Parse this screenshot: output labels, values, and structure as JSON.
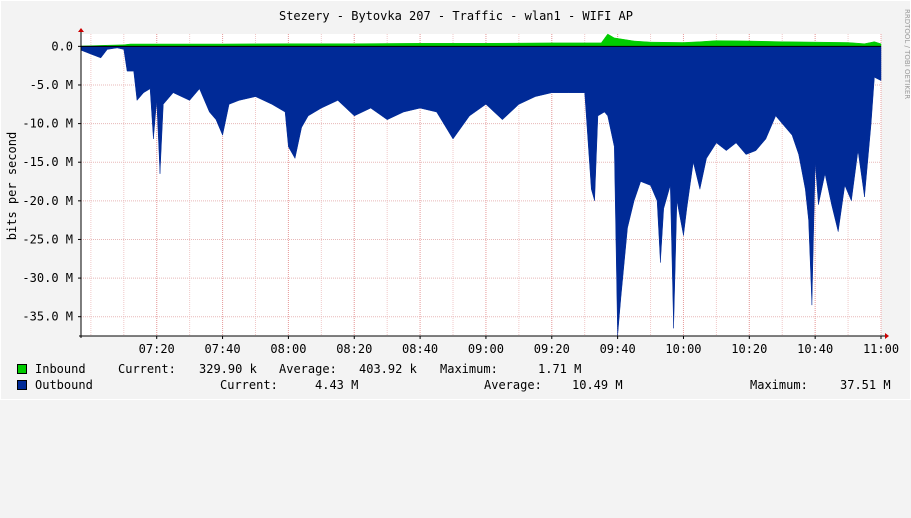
{
  "watermark": "RRDTOOL / TOBI OETIKER",
  "legend": {
    "inbound": {
      "name": "Inbound",
      "color": "#00cc00",
      "current_label": "Current:",
      "current": "329.90 k",
      "average_label": "Average:",
      "average": "403.92 k",
      "maximum_label": "Maximum:",
      "maximum": "1.71 M"
    },
    "outbound": {
      "name": "Outbound",
      "color": "#002a97",
      "current_label": "Current:",
      "current": "4.43 M",
      "average_label": "Average:",
      "average": "10.49 M",
      "maximum_label": "Maximum:",
      "maximum": "37.51 M"
    }
  },
  "chart_data": {
    "type": "area",
    "title": "Stezery - Bytovka 207 - Traffic - wlan1 - WIFI AP",
    "ylabel": "bits per second",
    "xlabel": "",
    "ylim": [
      -37.5,
      1.6
    ],
    "yticks": [
      0,
      -5,
      -10,
      -15,
      -20,
      -25,
      -30,
      -35
    ],
    "ytick_labels": [
      "0.0",
      "-5.0 M",
      "-10.0 M",
      "-15.0 M",
      "-20.0 M",
      "-25.0 M",
      "-30.0 M",
      "-35.0 M"
    ],
    "xlim": [
      "06:57",
      "11:00"
    ],
    "xticks": [
      "07:20",
      "07:40",
      "08:00",
      "08:20",
      "08:40",
      "09:00",
      "09:20",
      "09:40",
      "10:00",
      "10:20",
      "10:40",
      "11:00"
    ],
    "grid": true,
    "series": [
      {
        "name": "Inbound",
        "color": "#00cc00",
        "unit": "M bits/s",
        "points": [
          [
            "06:57",
            0.05
          ],
          [
            "07:05",
            0.15
          ],
          [
            "07:10",
            0.2
          ],
          [
            "07:12",
            0.3
          ],
          [
            "07:20",
            0.3
          ],
          [
            "07:40",
            0.3
          ],
          [
            "08:00",
            0.35
          ],
          [
            "08:20",
            0.35
          ],
          [
            "08:40",
            0.4
          ],
          [
            "09:00",
            0.4
          ],
          [
            "09:20",
            0.45
          ],
          [
            "09:35",
            0.45
          ],
          [
            "09:37",
            1.6
          ],
          [
            "09:39",
            1.1
          ],
          [
            "09:45",
            0.7
          ],
          [
            "09:50",
            0.55
          ],
          [
            "10:00",
            0.5
          ],
          [
            "10:05",
            0.6
          ],
          [
            "10:10",
            0.75
          ],
          [
            "10:20",
            0.7
          ],
          [
            "10:30",
            0.6
          ],
          [
            "10:40",
            0.55
          ],
          [
            "10:50",
            0.5
          ],
          [
            "10:55",
            0.35
          ],
          [
            "10:58",
            0.6
          ],
          [
            "11:00",
            0.33
          ]
        ]
      },
      {
        "name": "Outbound",
        "color": "#002a97",
        "unit": "M bits/s",
        "points": [
          [
            "06:57",
            -0.5
          ],
          [
            "07:00",
            -1.0
          ],
          [
            "07:03",
            -1.5
          ],
          [
            "07:05",
            -0.4
          ],
          [
            "07:08",
            -0.2
          ],
          [
            "07:10",
            -0.4
          ],
          [
            "07:11",
            -3.2
          ],
          [
            "07:13",
            -3.2
          ],
          [
            "07:14",
            -7.0
          ],
          [
            "07:16",
            -6.0
          ],
          [
            "07:18",
            -5.5
          ],
          [
            "07:19",
            -12.0
          ],
          [
            "07:20",
            -7.0
          ],
          [
            "07:21",
            -16.5
          ],
          [
            "07:22",
            -7.5
          ],
          [
            "07:25",
            -6.0
          ],
          [
            "07:30",
            -7.0
          ],
          [
            "07:33",
            -5.5
          ],
          [
            "07:36",
            -8.5
          ],
          [
            "07:38",
            -9.5
          ],
          [
            "07:40",
            -11.5
          ],
          [
            "07:42",
            -7.5
          ],
          [
            "07:45",
            -7.0
          ],
          [
            "07:50",
            -6.5
          ],
          [
            "07:55",
            -7.5
          ],
          [
            "07:59",
            -8.5
          ],
          [
            "08:00",
            -13.0
          ],
          [
            "08:02",
            -14.5
          ],
          [
            "08:04",
            -10.5
          ],
          [
            "08:06",
            -9.0
          ],
          [
            "08:10",
            -8.0
          ],
          [
            "08:15",
            -7.0
          ],
          [
            "08:20",
            -9.0
          ],
          [
            "08:25",
            -8.0
          ],
          [
            "08:30",
            -9.5
          ],
          [
            "08:35",
            -8.5
          ],
          [
            "08:40",
            -8.0
          ],
          [
            "08:45",
            -8.5
          ],
          [
            "08:50",
            -12.0
          ],
          [
            "08:55",
            -9.0
          ],
          [
            "09:00",
            -7.5
          ],
          [
            "09:05",
            -9.5
          ],
          [
            "09:10",
            -7.5
          ],
          [
            "09:15",
            -6.5
          ],
          [
            "09:20",
            -6.0
          ],
          [
            "09:25",
            -6.0
          ],
          [
            "09:30",
            -6.0
          ],
          [
            "09:32",
            -18.5
          ],
          [
            "09:33",
            -20.0
          ],
          [
            "09:34",
            -9.0
          ],
          [
            "09:36",
            -8.5
          ],
          [
            "09:37",
            -9.0
          ],
          [
            "09:39",
            -13.0
          ],
          [
            "09:40",
            -37.5
          ],
          [
            "09:41",
            -32.5
          ],
          [
            "09:43",
            -23.5
          ],
          [
            "09:45",
            -20.0
          ],
          [
            "09:47",
            -17.5
          ],
          [
            "09:50",
            -18.0
          ],
          [
            "09:52",
            -20.0
          ],
          [
            "09:53",
            -28.0
          ],
          [
            "09:54",
            -21.0
          ],
          [
            "09:56",
            -18.0
          ],
          [
            "09:57",
            -36.5
          ],
          [
            "09:58",
            -20.0
          ],
          [
            "10:00",
            -24.5
          ],
          [
            "10:01",
            -21.0
          ],
          [
            "10:03",
            -15.0
          ],
          [
            "10:05",
            -18.5
          ],
          [
            "10:07",
            -14.5
          ],
          [
            "10:10",
            -12.5
          ],
          [
            "10:13",
            -13.5
          ],
          [
            "10:16",
            -12.5
          ],
          [
            "10:19",
            -14.0
          ],
          [
            "10:22",
            -13.5
          ],
          [
            "10:25",
            -12.0
          ],
          [
            "10:28",
            -9.0
          ],
          [
            "10:30",
            -10.0
          ],
          [
            "10:33",
            -11.5
          ],
          [
            "10:35",
            -14.0
          ],
          [
            "10:37",
            -18.5
          ],
          [
            "10:38",
            -22.5
          ],
          [
            "10:39",
            -33.5
          ],
          [
            "10:40",
            -15.0
          ],
          [
            "10:41",
            -20.5
          ],
          [
            "10:43",
            -16.5
          ],
          [
            "10:45",
            -20.5
          ],
          [
            "10:47",
            -24.0
          ],
          [
            "10:49",
            -18.0
          ],
          [
            "10:51",
            -20.0
          ],
          [
            "10:53",
            -13.5
          ],
          [
            "10:55",
            -19.5
          ],
          [
            "10:57",
            -10.0
          ],
          [
            "10:58",
            -4.0
          ],
          [
            "11:00",
            -4.43
          ]
        ]
      }
    ]
  }
}
